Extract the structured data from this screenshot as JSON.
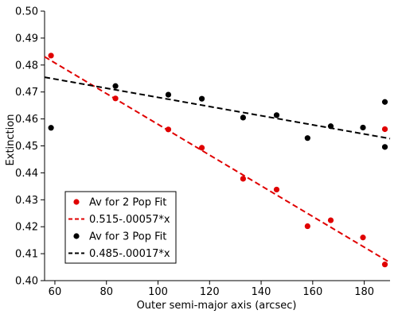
{
  "chart_data": {
    "type": "scatter",
    "title": "",
    "xlabel": "Outer semi-major axis (arcsec)",
    "ylabel": "Extinction",
    "xlim": [
      56,
      190
    ],
    "ylim": [
      0.4,
      0.5
    ],
    "xticks": [
      60,
      80,
      100,
      120,
      140,
      160,
      180
    ],
    "xtick_labels": [
      "60",
      "80",
      "100",
      "120",
      "140",
      "160",
      "180"
    ],
    "yticks": [
      0.4,
      0.41,
      0.42,
      0.43,
      0.44,
      0.45,
      0.46,
      0.47,
      0.48,
      0.49,
      0.5
    ],
    "ytick_labels": [
      "0.40",
      "0.41",
      "0.42",
      "0.43",
      "0.44",
      "0.45",
      "0.46",
      "0.47",
      "0.48",
      "0.49",
      "0.50"
    ],
    "grid": false,
    "legend_position": "bottom-left",
    "series": [
      {
        "name": "Av for 2 Pop Fit",
        "kind": "points",
        "color": "#e00000",
        "points": [
          [
            58.5,
            0.4835
          ],
          [
            83.5,
            0.4676
          ],
          [
            104.0,
            0.4561
          ],
          [
            117.0,
            0.4493
          ],
          [
            133.0,
            0.4378
          ],
          [
            146.0,
            0.4338
          ],
          [
            158.0,
            0.4202
          ],
          [
            167.0,
            0.4224
          ],
          [
            179.5,
            0.416
          ],
          [
            188.0,
            0.406
          ],
          [
            188.0,
            0.4562
          ]
        ]
      },
      {
        "name": "0.515-.00057*x",
        "kind": "fit-line",
        "color": "#e00000",
        "intercept": 0.515,
        "slope": -0.00057
      },
      {
        "name": "Av for 3 Pop Fit",
        "kind": "points",
        "color": "#000000",
        "points": [
          [
            58.5,
            0.4567
          ],
          [
            83.5,
            0.4722
          ],
          [
            104.0,
            0.469
          ],
          [
            117.0,
            0.4675
          ],
          [
            133.0,
            0.4605
          ],
          [
            146.0,
            0.4614
          ],
          [
            158.0,
            0.4529
          ],
          [
            167.0,
            0.4573
          ],
          [
            179.5,
            0.4568
          ],
          [
            188.0,
            0.4663
          ],
          [
            188.0,
            0.4496
          ]
        ]
      },
      {
        "name": "0.485-.00017*x",
        "kind": "fit-line",
        "color": "#000000",
        "intercept": 0.485,
        "slope": -0.00017
      }
    ]
  }
}
